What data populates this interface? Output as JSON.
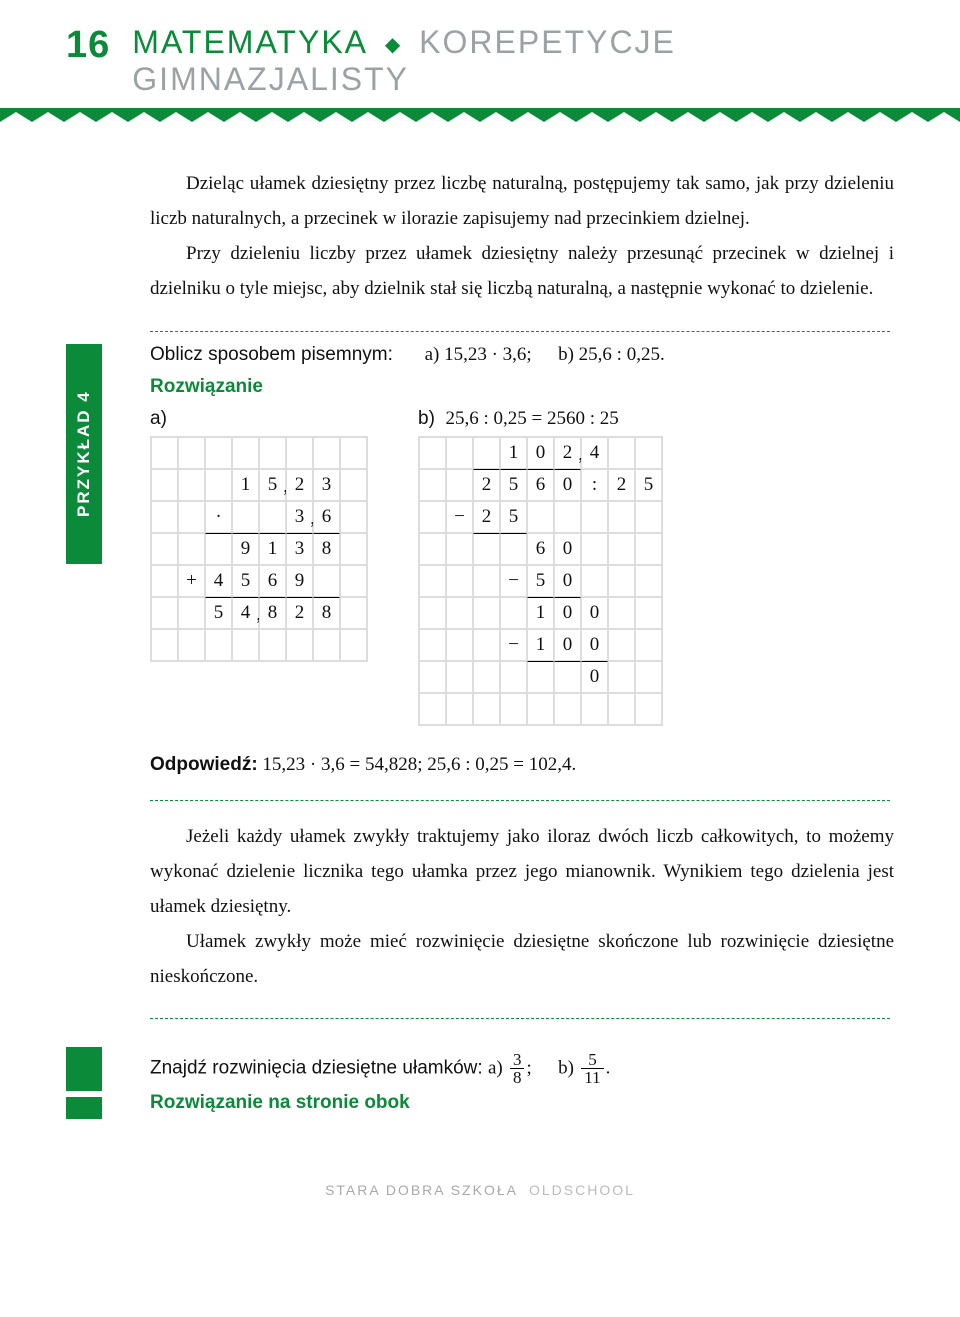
{
  "header": {
    "page_number": "16",
    "series_bold": "MATEMATYKA",
    "series_light": "KOREPETYCJE GIMNAZJALISTY"
  },
  "colors": {
    "brand_green": "#0b8a3a",
    "grey_text": "#9aa2a6",
    "grid_line": "#dddddd",
    "body_text": "#111111"
  },
  "paragraphs": {
    "p1": "Dzieląc ułamek dziesiętny przez liczbę naturalną, postępujemy tak samo, jak przy dzieleniu liczb naturalnych, a przecinek w ilorazie zapisujemy nad przecinkiem dzielnej.",
    "p2": "Przy dzieleniu liczby przez ułamek dziesiętny należy przesunąć przecinek w dzielnej i dzielniku o tyle miejsc, aby dzielnik stał się liczbą naturalną, a następnie wykonać to dzielenie.",
    "p3": "Jeżeli każdy ułamek zwykły traktujemy jako iloraz dwóch liczb całkowitych, to możemy wykonać dzielenie licznika tego ułamka przez jego mianownik. Wynikiem tego dzielenia jest ułamek dziesiętny.",
    "p4": "Ułamek zwykły może mieć rozwinięcie dziesiętne skończone lub rozwinięcie dziesiętne nieskończone."
  },
  "example": {
    "tab_label": "PRZYKŁAD 4",
    "prompt_prefix": "Oblicz sposobem pisemnym:",
    "prompt_a": "a) 15,23 · 3,6;",
    "prompt_b": "b) 25,6 : 0,25.",
    "solution_label": "Rozwiązanie",
    "label_a": "a)",
    "label_b_prefix": "b)",
    "label_b_text": "25,6 : 0,25 = 2560 : 25",
    "gridA": {
      "cols": 8,
      "rows": 7,
      "cells": [
        [
          " ",
          " ",
          " ",
          " ",
          " ",
          " ",
          " ",
          " "
        ],
        [
          " ",
          " ",
          " ",
          "1",
          "5,",
          "2",
          "3",
          " "
        ],
        [
          " ",
          " ",
          "·",
          " ",
          " ",
          "3,",
          "6",
          " "
        ],
        [
          " ",
          " ",
          " ",
          "9",
          "1",
          "3",
          "8",
          " "
        ],
        [
          " ",
          "+",
          "4",
          "5",
          "6",
          "9",
          " ",
          " "
        ],
        [
          " ",
          " ",
          "5",
          "4,",
          "8",
          "2",
          "8",
          " "
        ],
        [
          " ",
          " ",
          " ",
          " ",
          " ",
          " ",
          " ",
          " "
        ]
      ],
      "top_border_rows_cols": [
        [
          3,
          2,
          7
        ],
        [
          5,
          2,
          7
        ]
      ]
    },
    "gridB": {
      "cols": 9,
      "rows": 9,
      "cells": [
        [
          " ",
          " ",
          " ",
          "1",
          "0",
          "2,",
          "4",
          " ",
          " "
        ],
        [
          " ",
          " ",
          "2",
          "5",
          "6",
          "0",
          ":",
          "2",
          "5"
        ],
        [
          " ",
          "−",
          "2",
          "5",
          " ",
          " ",
          " ",
          " ",
          " "
        ],
        [
          " ",
          " ",
          " ",
          " ",
          "6",
          "0",
          " ",
          " ",
          " "
        ],
        [
          " ",
          " ",
          " ",
          "−",
          "5",
          "0",
          " ",
          " ",
          " "
        ],
        [
          " ",
          " ",
          " ",
          " ",
          "1",
          "0",
          "0",
          " ",
          " "
        ],
        [
          " ",
          " ",
          " ",
          "−",
          "1",
          "0",
          "0",
          " ",
          " "
        ],
        [
          " ",
          " ",
          " ",
          " ",
          " ",
          " ",
          "0",
          " ",
          " "
        ],
        [
          " ",
          " ",
          " ",
          " ",
          " ",
          " ",
          " ",
          " ",
          " "
        ]
      ],
      "top_border_rows_cols": [
        [
          1,
          2,
          6
        ],
        [
          3,
          2,
          4
        ],
        [
          5,
          4,
          6
        ],
        [
          7,
          4,
          7
        ]
      ],
      "div_right_border": {
        "row": 1,
        "col": 6
      }
    },
    "answer_label": "Odpowiedź:",
    "answer_text": "15,23 · 3,6 = 54,828;   25,6 : 0,25 = 102,4."
  },
  "exercise": {
    "prompt": "Znajdź rozwinięcia dziesiętne ułamków:",
    "a_label": "a)",
    "a_num": "3",
    "a_den": "8",
    "b_label": "b)",
    "b_num": "5",
    "b_den": "11",
    "sol_next": "Rozwiązanie na stronie obok"
  },
  "footer": {
    "text": "STARA DOBRA SZKOŁA",
    "brand": "OLDSCHOOL"
  }
}
